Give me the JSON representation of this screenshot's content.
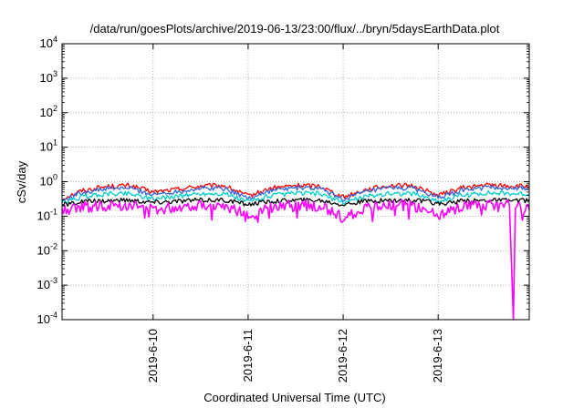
{
  "chart_data": {
    "type": "line",
    "title": "/data/run/goesPlots/archive/2019-06-13/23:00/flux/../bryn/5daysEarthData.plot",
    "xlabel": "Coordinated Universal Time (UTC)",
    "ylabel": "cSv/day",
    "yscale": "log",
    "ylim": [
      0.0001,
      10000
    ],
    "xlim": [
      "2019-06-09 01:00",
      "2019-06-13 23:00"
    ],
    "grid": true,
    "y_ticks": [
      {
        "base": "10",
        "exp": "-4",
        "value": 0.0001
      },
      {
        "base": "10",
        "exp": "-3",
        "value": 0.001
      },
      {
        "base": "10",
        "exp": "-2",
        "value": 0.01
      },
      {
        "base": "10",
        "exp": "-1",
        "value": 0.1
      },
      {
        "base": "10",
        "exp": "0",
        "value": 1
      },
      {
        "base": "10",
        "exp": "1",
        "value": 10
      },
      {
        "base": "10",
        "exp": "2",
        "value": 100
      },
      {
        "base": "10",
        "exp": "3",
        "value": 1000
      },
      {
        "base": "10",
        "exp": "4",
        "value": 10000
      }
    ],
    "x_ticks": [
      {
        "label": "2019-6-10",
        "value": "2019-06-10 00:00"
      },
      {
        "label": "2019-6-11",
        "value": "2019-06-11 00:00"
      },
      {
        "label": "2019-6-12",
        "value": "2019-06-12 00:00"
      },
      {
        "label": "2019-6-13",
        "value": "2019-06-13 00:00"
      }
    ],
    "series": [
      {
        "color": "#ff0000",
        "values": [
          [
            "2019-06-09 01:00",
            0.32
          ],
          [
            "2019-06-09 06:00",
            0.55
          ],
          [
            "2019-06-09 12:00",
            0.72
          ],
          [
            "2019-06-09 18:00",
            0.78
          ],
          [
            "2019-06-10 00:00",
            0.5
          ],
          [
            "2019-06-10 06:00",
            0.6
          ],
          [
            "2019-06-10 12:00",
            0.75
          ],
          [
            "2019-06-10 18:00",
            0.76
          ],
          [
            "2019-06-11 00:00",
            0.38
          ],
          [
            "2019-06-11 06:00",
            0.65
          ],
          [
            "2019-06-11 12:00",
            0.78
          ],
          [
            "2019-06-11 18:00",
            0.76
          ],
          [
            "2019-06-12 00:00",
            0.36
          ],
          [
            "2019-06-12 06:00",
            0.6
          ],
          [
            "2019-06-12 12:00",
            0.78
          ],
          [
            "2019-06-12 18:00",
            0.75
          ],
          [
            "2019-06-13 00:00",
            0.4
          ],
          [
            "2019-06-13 06:00",
            0.66
          ],
          [
            "2019-06-13 12:00",
            0.8
          ],
          [
            "2019-06-13 23:00",
            0.72
          ]
        ]
      },
      {
        "color": "#3366dd",
        "values": [
          [
            "2019-06-09 01:00",
            0.28
          ],
          [
            "2019-06-09 06:00",
            0.48
          ],
          [
            "2019-06-09 12:00",
            0.62
          ],
          [
            "2019-06-09 18:00",
            0.66
          ],
          [
            "2019-06-10 00:00",
            0.42
          ],
          [
            "2019-06-10 06:00",
            0.52
          ],
          [
            "2019-06-10 12:00",
            0.64
          ],
          [
            "2019-06-10 18:00",
            0.65
          ],
          [
            "2019-06-11 00:00",
            0.33
          ],
          [
            "2019-06-11 06:00",
            0.56
          ],
          [
            "2019-06-11 12:00",
            0.66
          ],
          [
            "2019-06-11 18:00",
            0.64
          ],
          [
            "2019-06-12 00:00",
            0.31
          ],
          [
            "2019-06-12 06:00",
            0.52
          ],
          [
            "2019-06-12 12:00",
            0.66
          ],
          [
            "2019-06-12 18:00",
            0.64
          ],
          [
            "2019-06-13 00:00",
            0.34
          ],
          [
            "2019-06-13 06:00",
            0.56
          ],
          [
            "2019-06-13 12:00",
            0.68
          ],
          [
            "2019-06-13 23:00",
            0.62
          ]
        ]
      },
      {
        "color": "#00cccc",
        "values": [
          [
            "2019-06-09 01:00",
            0.24
          ],
          [
            "2019-06-09 06:00",
            0.36
          ],
          [
            "2019-06-09 12:00",
            0.44
          ],
          [
            "2019-06-09 18:00",
            0.46
          ],
          [
            "2019-06-10 00:00",
            0.32
          ],
          [
            "2019-06-10 06:00",
            0.38
          ],
          [
            "2019-06-10 12:00",
            0.45
          ],
          [
            "2019-06-10 18:00",
            0.45
          ],
          [
            "2019-06-11 00:00",
            0.26
          ],
          [
            "2019-06-11 06:00",
            0.4
          ],
          [
            "2019-06-11 12:00",
            0.46
          ],
          [
            "2019-06-11 18:00",
            0.45
          ],
          [
            "2019-06-12 00:00",
            0.25
          ],
          [
            "2019-06-12 06:00",
            0.38
          ],
          [
            "2019-06-12 12:00",
            0.46
          ],
          [
            "2019-06-12 18:00",
            0.45
          ],
          [
            "2019-06-13 00:00",
            0.27
          ],
          [
            "2019-06-13 06:00",
            0.4
          ],
          [
            "2019-06-13 12:00",
            0.47
          ],
          [
            "2019-06-13 23:00",
            0.44
          ]
        ]
      },
      {
        "color": "#000000",
        "values": [
          [
            "2019-06-09 01:00",
            0.21
          ],
          [
            "2019-06-09 06:00",
            0.26
          ],
          [
            "2019-06-09 12:00",
            0.28
          ],
          [
            "2019-06-09 18:00",
            0.29
          ],
          [
            "2019-06-10 00:00",
            0.25
          ],
          [
            "2019-06-10 06:00",
            0.27
          ],
          [
            "2019-06-10 12:00",
            0.29
          ],
          [
            "2019-06-10 18:00",
            0.29
          ],
          [
            "2019-06-11 00:00",
            0.22
          ],
          [
            "2019-06-11 06:00",
            0.27
          ],
          [
            "2019-06-11 12:00",
            0.29
          ],
          [
            "2019-06-11 18:00",
            0.29
          ],
          [
            "2019-06-12 00:00",
            0.22
          ],
          [
            "2019-06-12 06:00",
            0.27
          ],
          [
            "2019-06-12 12:00",
            0.29
          ],
          [
            "2019-06-12 18:00",
            0.29
          ],
          [
            "2019-06-13 00:00",
            0.23
          ],
          [
            "2019-06-13 06:00",
            0.27
          ],
          [
            "2019-06-13 12:00",
            0.29
          ],
          [
            "2019-06-13 23:00",
            0.28
          ]
        ]
      },
      {
        "color": "#ff00ff",
        "values": [
          [
            "2019-06-09 01:00",
            0.14
          ],
          [
            "2019-06-09 06:00",
            0.18
          ],
          [
            "2019-06-09 12:00",
            0.2
          ],
          [
            "2019-06-09 18:00",
            0.21
          ],
          [
            "2019-06-10 00:00",
            0.15
          ],
          [
            "2019-06-10 06:00",
            0.18
          ],
          [
            "2019-06-10 12:00",
            0.21
          ],
          [
            "2019-06-10 18:00",
            0.21
          ],
          [
            "2019-06-11 00:00",
            0.1
          ],
          [
            "2019-06-11 06:00",
            0.18
          ],
          [
            "2019-06-11 12:00",
            0.21
          ],
          [
            "2019-06-11 18:00",
            0.2
          ],
          [
            "2019-06-12 00:00",
            0.09
          ],
          [
            "2019-06-12 06:00",
            0.17
          ],
          [
            "2019-06-12 12:00",
            0.21
          ],
          [
            "2019-06-12 18:00",
            0.2
          ],
          [
            "2019-06-13 00:00",
            0.11
          ],
          [
            "2019-06-13 06:00",
            0.18
          ],
          [
            "2019-06-13 12:00",
            0.21
          ],
          [
            "2019-06-13 18:00",
            0.2
          ],
          [
            "2019-06-13 19:00",
            0.0001
          ],
          [
            "2019-06-13 19:30",
            0.2
          ],
          [
            "2019-06-13 23:00",
            0.15
          ]
        ]
      }
    ]
  }
}
